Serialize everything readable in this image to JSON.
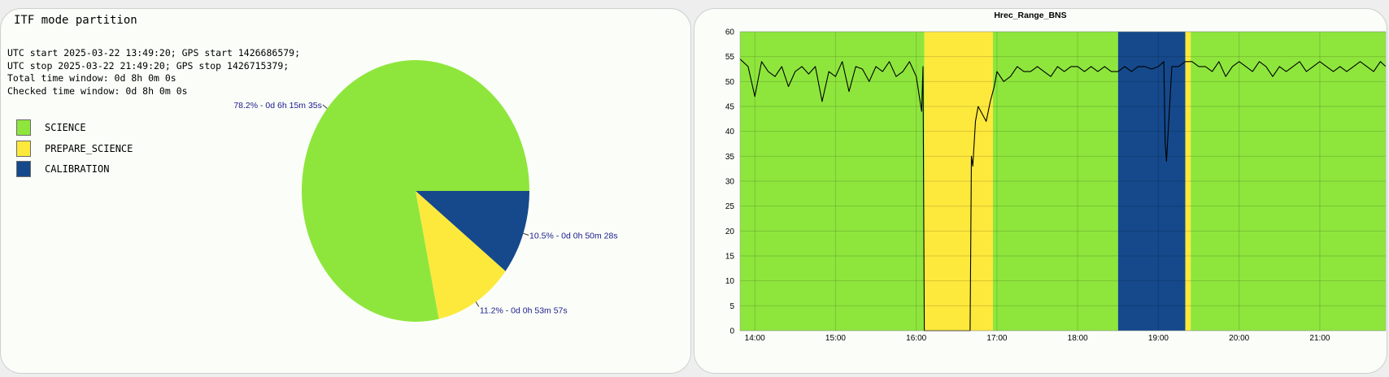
{
  "left_panel": {
    "title": "ITF mode partition",
    "info_lines": [
      "UTC start 2025-03-22 13:49:20; GPS start 1426686579;",
      "UTC stop 2025-03-22 21:49:20; GPS stop 1426715379;",
      "Total time window: 0d 8h 0m 0s",
      "Checked time window: 0d 8h 0m 0s"
    ],
    "legend": [
      {
        "label": "SCIENCE",
        "color": "#8ee63d"
      },
      {
        "label": "PREPARE_SCIENCE",
        "color": "#fde93c"
      },
      {
        "label": "CALIBRATION",
        "color": "#15498b"
      }
    ]
  },
  "colors": {
    "science": "#8ee63d",
    "prepare_science": "#fde93c",
    "calibration": "#15498b",
    "pie_label": "#1a1a8c",
    "line": "#000000"
  },
  "chart_data": [
    {
      "type": "pie",
      "slices": [
        {
          "label": "CALIBRATION",
          "percent": 10.5,
          "text": "10.5% - 0d 0h 50m 28s"
        },
        {
          "label": "PREPARE_SCIENCE",
          "percent": 11.2,
          "text": "11.2% - 0d 0h 53m 57s"
        },
        {
          "label": "SCIENCE",
          "percent": 78.2,
          "text": "78.2% - 0d 6h 15m 35s"
        }
      ]
    },
    {
      "type": "line",
      "title": "Hrec_Range_BNS",
      "xlim": [
        "13:49",
        "21:49"
      ],
      "ylim": [
        0,
        60
      ],
      "yticks": [
        0,
        5,
        10,
        15,
        20,
        25,
        30,
        35,
        40,
        45,
        50,
        55,
        60
      ],
      "xticks": [
        "14:00",
        "15:00",
        "16:00",
        "17:00",
        "18:00",
        "19:00",
        "20:00",
        "21:00"
      ],
      "grid": true,
      "mode_bands": [
        {
          "mode": "SCIENCE",
          "start": "13:49",
          "end": "16:06"
        },
        {
          "mode": "PREPARE_SCIENCE",
          "start": "16:06",
          "end": "16:57"
        },
        {
          "mode": "SCIENCE",
          "start": "16:57",
          "end": "18:30"
        },
        {
          "mode": "CALIBRATION",
          "start": "18:30",
          "end": "19:20"
        },
        {
          "mode": "PREPARE_SCIENCE",
          "start": "19:20",
          "end": "19:24"
        },
        {
          "mode": "SCIENCE",
          "start": "19:24",
          "end": "21:49"
        }
      ],
      "x": [
        "13:49",
        "13:55",
        "14:00",
        "14:05",
        "14:10",
        "14:15",
        "14:20",
        "14:25",
        "14:30",
        "14:35",
        "14:40",
        "14:45",
        "14:50",
        "14:55",
        "15:00",
        "15:05",
        "15:10",
        "15:15",
        "15:20",
        "15:25",
        "15:30",
        "15:35",
        "15:40",
        "15:45",
        "15:50",
        "15:55",
        "16:00",
        "16:04",
        "16:05",
        "16:06",
        "16:30",
        "16:40",
        "16:41",
        "16:42",
        "16:44",
        "16:46",
        "16:48",
        "16:50",
        "16:52",
        "16:55",
        "16:58",
        "17:00",
        "17:05",
        "17:10",
        "17:15",
        "17:20",
        "17:25",
        "17:30",
        "17:35",
        "17:40",
        "17:45",
        "17:50",
        "17:55",
        "18:00",
        "18:05",
        "18:10",
        "18:15",
        "18:20",
        "18:25",
        "18:30",
        "18:35",
        "18:40",
        "18:45",
        "18:50",
        "18:55",
        "19:00",
        "19:04",
        "19:05",
        "19:06",
        "19:10",
        "19:15",
        "19:20",
        "19:25",
        "19:30",
        "19:35",
        "19:40",
        "19:45",
        "19:50",
        "19:55",
        "20:00",
        "20:05",
        "20:10",
        "20:15",
        "20:20",
        "20:25",
        "20:30",
        "20:35",
        "20:40",
        "20:45",
        "20:50",
        "20:55",
        "21:00",
        "21:05",
        "21:10",
        "21:15",
        "21:20",
        "21:25",
        "21:30",
        "21:35",
        "21:40",
        "21:45",
        "21:49"
      ],
      "y": [
        54.5,
        53,
        47,
        54,
        52,
        51,
        53,
        49,
        52,
        53,
        51.5,
        53,
        46,
        52,
        51,
        54,
        48,
        53,
        52.5,
        50,
        53,
        52,
        54,
        51,
        52,
        54,
        51,
        44,
        53,
        0,
        0,
        0,
        35,
        33,
        42,
        45,
        44,
        43,
        42,
        46,
        49,
        52,
        50,
        51,
        53,
        52,
        52,
        53,
        52,
        51,
        53,
        52,
        53,
        53,
        52,
        53,
        52,
        53,
        52,
        52,
        53,
        52,
        53,
        53,
        52.5,
        53,
        54,
        38,
        34,
        53,
        53,
        54,
        54,
        53,
        53,
        52,
        54,
        51,
        53,
        54,
        53,
        52,
        54,
        53,
        51,
        53,
        52,
        53,
        54,
        52,
        53,
        54,
        53,
        52,
        53,
        52,
        53,
        54,
        53,
        52,
        54,
        53
      ]
    }
  ]
}
